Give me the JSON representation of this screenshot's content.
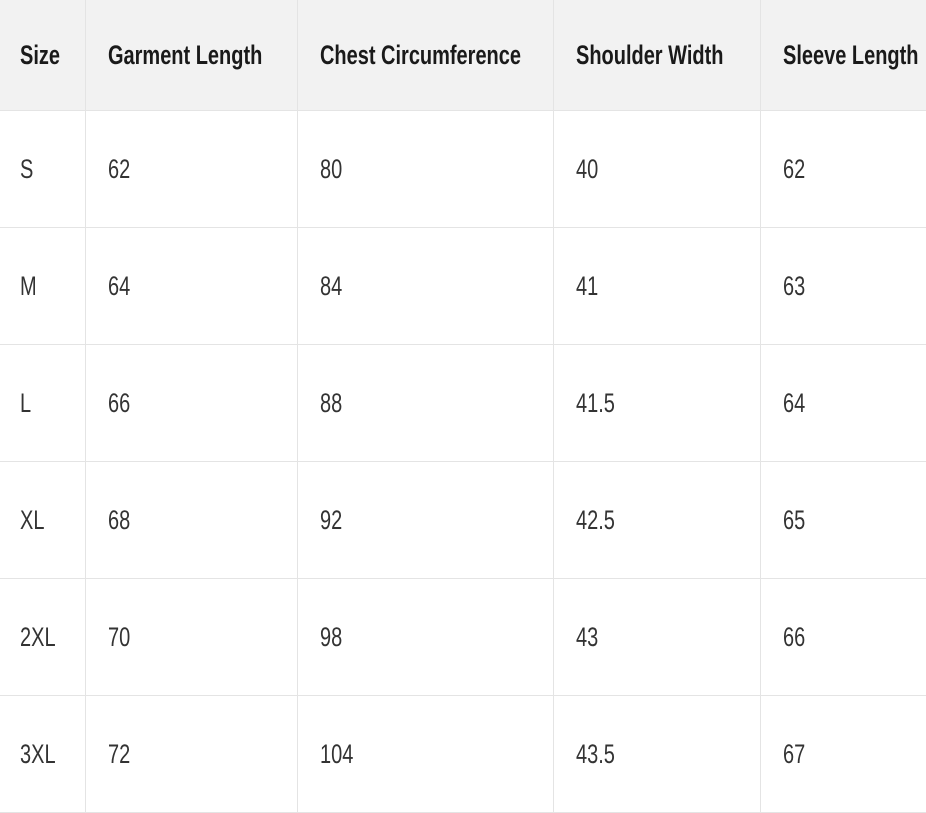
{
  "table": {
    "headers": [
      "Size",
      "Garment Length",
      "Chest Circumference",
      "Shoulder Width",
      "Sleeve Length"
    ],
    "rows": [
      [
        "S",
        "62",
        "80",
        "40",
        "62"
      ],
      [
        "M",
        "64",
        "84",
        "41",
        "63"
      ],
      [
        "L",
        "66",
        "88",
        "41.5",
        "64"
      ],
      [
        "XL",
        "68",
        "92",
        "42.5",
        "65"
      ],
      [
        "2XL",
        "70",
        "98",
        "43",
        "66"
      ],
      [
        "3XL",
        "72",
        "104",
        "43.5",
        "67"
      ]
    ]
  },
  "colors": {
    "header_bg": "#f2f2f2",
    "border": "#e4e4e4",
    "text": "#333333"
  }
}
